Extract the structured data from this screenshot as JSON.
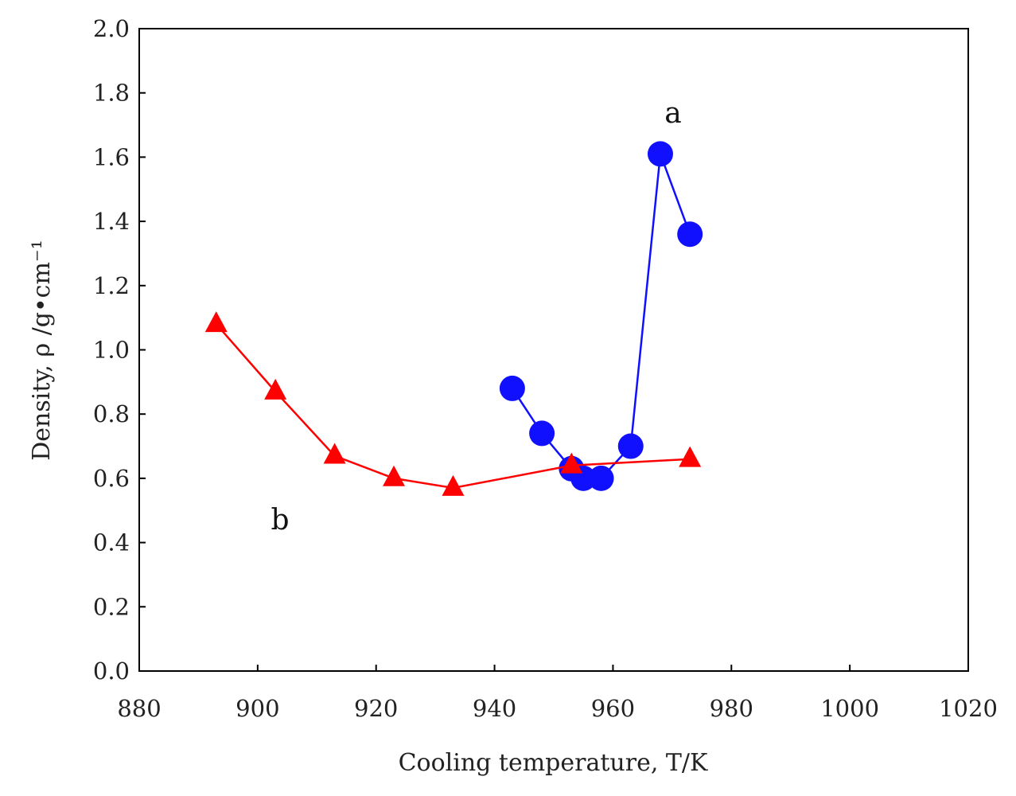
{
  "chart_data": {
    "type": "line",
    "xlabel": "Cooling temperature, T/K",
    "ylabel": "Density, ρ /g•cm⁻¹",
    "xlim": [
      880,
      1020
    ],
    "ylim": [
      0.0,
      2.0
    ],
    "xticks": [
      "880",
      "900",
      "920",
      "940",
      "960",
      "980",
      "1000",
      "1020"
    ],
    "yticks": [
      "0.0",
      "0.2",
      "0.4",
      "0.6",
      "0.8",
      "1.0",
      "1.2",
      "1.4",
      "1.6",
      "1.8",
      "2.0"
    ],
    "grid": false,
    "series": [
      {
        "name": "a",
        "color": "#1010ff",
        "marker": "circle",
        "x": [
          943,
          948,
          953,
          955,
          958,
          963,
          968,
          973
        ],
        "y": [
          0.88,
          0.74,
          0.63,
          0.6,
          0.6,
          0.7,
          1.61,
          1.36
        ]
      },
      {
        "name": "b",
        "color": "#ff0000",
        "marker": "triangle",
        "x": [
          893,
          903,
          913,
          923,
          933,
          953,
          973
        ],
        "y": [
          1.08,
          0.87,
          0.67,
          0.6,
          0.57,
          0.64,
          0.66
        ]
      }
    ]
  }
}
